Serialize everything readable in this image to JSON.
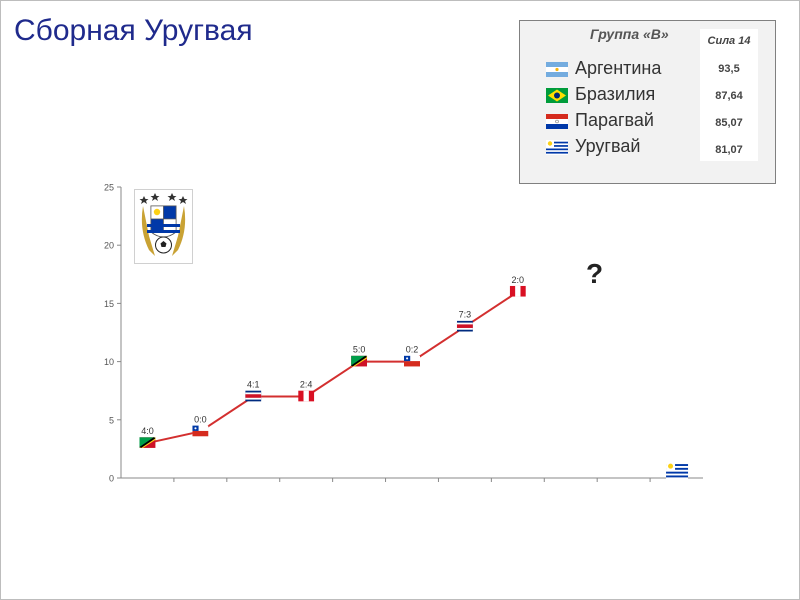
{
  "slide": {
    "title": "Сборная Уругвая"
  },
  "group": {
    "title": "Группа «В»",
    "power_header": "Сила 14",
    "teams": [
      {
        "name": "Аргентина",
        "power": "93,5",
        "flag": "argentina"
      },
      {
        "name": "Бразилия",
        "power": "87,64",
        "flag": "brazil"
      },
      {
        "name": "Парагвай",
        "power": "85,07",
        "flag": "paraguay"
      },
      {
        "name": "Уругвай",
        "power": "81,07",
        "flag": "uruguay"
      }
    ]
  },
  "annotation": {
    "question": "?"
  },
  "colors": {
    "title": "#1f2a8c",
    "line": "#d32f2f"
  },
  "chart_data": {
    "type": "line",
    "ylim": [
      0,
      25
    ],
    "yticks": [
      "0",
      "5",
      "10",
      "15",
      "20",
      "25"
    ],
    "grid": false,
    "x_count": 11,
    "points": [
      {
        "x": 1,
        "y": 3,
        "score": "4:0",
        "flag": "saint-kitts"
      },
      {
        "x": 2,
        "y": 4,
        "score": "0:0",
        "flag": "chile"
      },
      {
        "x": 3,
        "y": 7,
        "score": "4:1",
        "flag": "costa-rica"
      },
      {
        "x": 4,
        "y": 7,
        "score": "2:4",
        "flag": "peru"
      },
      {
        "x": 5,
        "y": 10,
        "score": "5:0",
        "flag": "saint-kitts"
      },
      {
        "x": 6,
        "y": 10,
        "score": "0:2",
        "flag": "chile"
      },
      {
        "x": 7,
        "y": 13,
        "score": "7:3",
        "flag": "costa-rica"
      },
      {
        "x": 8,
        "y": 16,
        "score": "2:0",
        "flag": "peru"
      }
    ],
    "marker_flag": {
      "x": 11,
      "y": 0.5,
      "flag": "uruguay"
    }
  }
}
